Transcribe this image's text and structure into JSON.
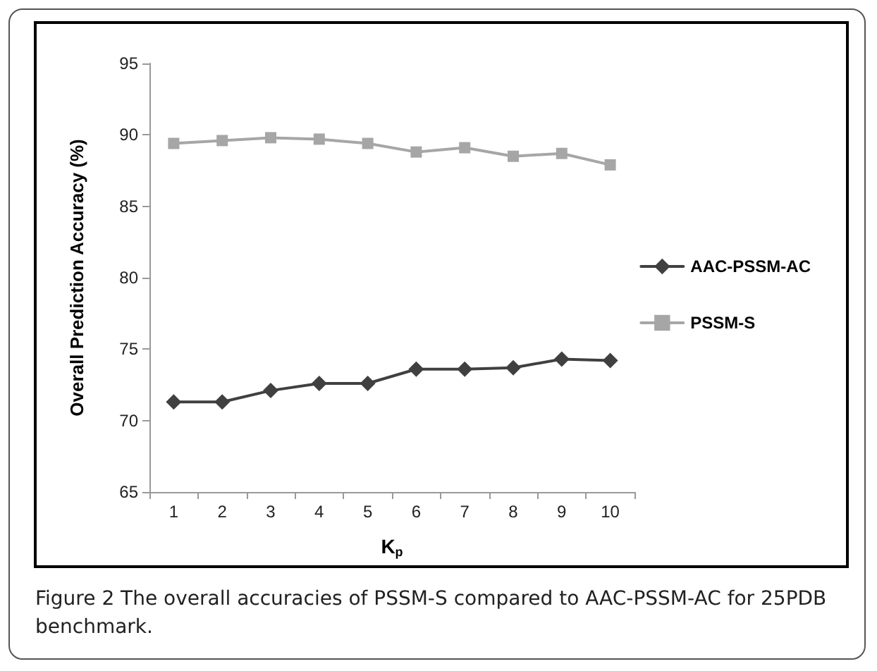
{
  "chart_data": {
    "type": "line",
    "xlabel": "K$_{p}$",
    "ylabel": "Overall Prediction Accuracy (%)",
    "categories": [
      "1",
      "2",
      "3",
      "4",
      "5",
      "6",
      "7",
      "8",
      "9",
      "10"
    ],
    "series": [
      {
        "name": "AAC-PSSM-AC",
        "color": "#404040",
        "marker": "diamond",
        "values": [
          71.3,
          71.3,
          72.1,
          72.6,
          72.6,
          73.6,
          73.6,
          73.7,
          74.3,
          74.2
        ]
      },
      {
        "name": "PSSM-S",
        "color": "#a6a6a6",
        "marker": "square",
        "values": [
          89.4,
          89.6,
          89.8,
          89.7,
          89.4,
          88.8,
          89.1,
          88.5,
          88.7,
          87.9
        ]
      }
    ],
    "ylim": [
      65,
      95
    ],
    "yticks": [
      65,
      70,
      75,
      80,
      85,
      90,
      95
    ],
    "grid": false,
    "legend": "right",
    "annotations": [
      "Figure 2 The overall accuracies of PSSM-S compared to AAC-PSSM-AC for 25PDB benchmark."
    ]
  }
}
